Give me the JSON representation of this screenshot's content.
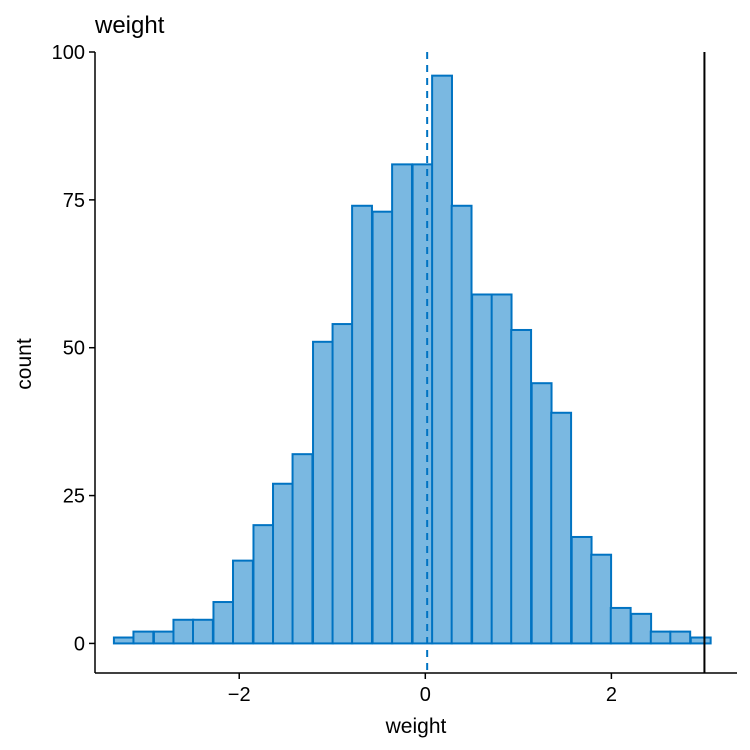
{
  "chart_data": {
    "type": "bar",
    "title": "weight",
    "xlabel": "weight",
    "ylabel": "count",
    "xlim": [
      -3.55,
      3.35
    ],
    "ylim": [
      -5,
      100
    ],
    "x_ticks": [
      -2,
      0,
      2
    ],
    "x_tick_labels": [
      "−2",
      "0",
      "2"
    ],
    "y_ticks": [
      0,
      25,
      50,
      75,
      100
    ],
    "y_tick_labels": [
      "0",
      "25",
      "50",
      "75",
      "100"
    ],
    "bin_width": 0.2135,
    "bins": [
      {
        "x": -3.24,
        "count": 1
      },
      {
        "x": -3.03,
        "count": 2
      },
      {
        "x": -2.81,
        "count": 2
      },
      {
        "x": -2.6,
        "count": 4
      },
      {
        "x": -2.39,
        "count": 4
      },
      {
        "x": -2.17,
        "count": 7
      },
      {
        "x": -1.96,
        "count": 14
      },
      {
        "x": -1.74,
        "count": 20
      },
      {
        "x": -1.53,
        "count": 27
      },
      {
        "x": -1.32,
        "count": 32
      },
      {
        "x": -1.1,
        "count": 51
      },
      {
        "x": -0.89,
        "count": 54
      },
      {
        "x": -0.68,
        "count": 74
      },
      {
        "x": -0.46,
        "count": 73
      },
      {
        "x": -0.25,
        "count": 81
      },
      {
        "x": -0.03,
        "count": 81
      },
      {
        "x": 0.18,
        "count": 96
      },
      {
        "x": 0.39,
        "count": 74
      },
      {
        "x": 0.61,
        "count": 59
      },
      {
        "x": 0.82,
        "count": 59
      },
      {
        "x": 1.03,
        "count": 53
      },
      {
        "x": 1.25,
        "count": 44
      },
      {
        "x": 1.46,
        "count": 39
      },
      {
        "x": 1.68,
        "count": 18
      },
      {
        "x": 1.89,
        "count": 15
      },
      {
        "x": 2.1,
        "count": 6
      },
      {
        "x": 2.32,
        "count": 5
      },
      {
        "x": 2.53,
        "count": 2
      },
      {
        "x": 2.74,
        "count": 2
      },
      {
        "x": 2.96,
        "count": 1
      }
    ],
    "mean_line_x": 0.02,
    "reference_line_x": 3.0,
    "bar_fill": "#7ab8e1",
    "bar_outline": "#0073c2",
    "mean_line_color": "#0073c2",
    "reference_line_color": "#000000",
    "grid": false,
    "legend": "none"
  }
}
